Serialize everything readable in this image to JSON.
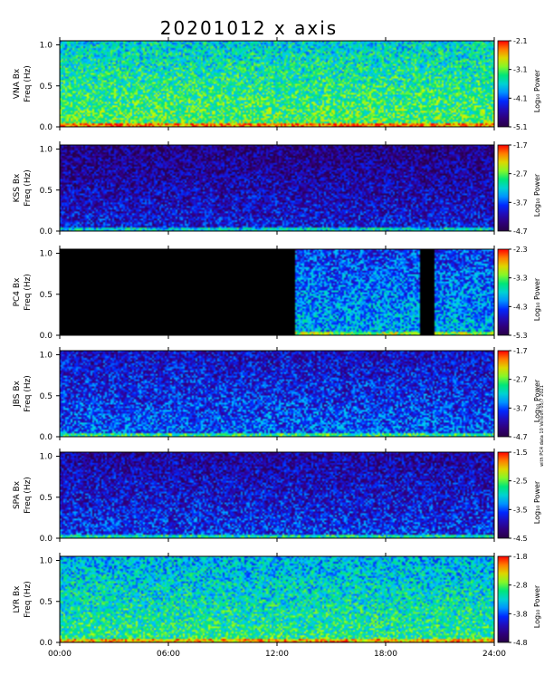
{
  "chart_data": {
    "type": "heatmap",
    "title": "20201012 x axis",
    "x_axis": {
      "range": [
        0,
        24
      ],
      "ticks": [
        0,
        6,
        12,
        18,
        24
      ],
      "tick_labels": [
        "00:00",
        "06:00",
        "12:00",
        "18:00",
        "24:00"
      ]
    },
    "y_axis": {
      "label": "Freq (Hz)",
      "range": [
        0,
        1.05
      ],
      "ticks": [
        0.0,
        0.5,
        1.0
      ],
      "tick_labels": [
        "0.0",
        "0.5",
        "1.0"
      ]
    },
    "colorbar_label": "Log₁₀ Power",
    "side_note": "with PC4 data 10 Version 05/7 2021",
    "panels": [
      {
        "station": "VNA Bx",
        "colorbar": [
          "-2.1",
          "-3.1",
          "-4.1",
          "-5.1"
        ],
        "base_level": 0.5
      },
      {
        "station": "KSS Bx",
        "colorbar": [
          "-1.7",
          "-2.7",
          "-3.7",
          "-4.7"
        ],
        "base_level": 0.1
      },
      {
        "station": "PC4 Bx",
        "colorbar": [
          "-2.3",
          "-3.3",
          "-4.3",
          "-5.3"
        ],
        "base_level": 0.3,
        "no_data_hours": [
          [
            0,
            13
          ],
          [
            19.8,
            20.7
          ]
        ]
      },
      {
        "station": "JBS Bx",
        "colorbar": [
          "-1.7",
          "-2.7",
          "-3.7",
          "-4.7"
        ],
        "base_level": 0.2
      },
      {
        "station": "SPA Bx",
        "colorbar": [
          "-1.5",
          "-2.5",
          "-3.5",
          "-4.5"
        ],
        "base_level": 0.15
      },
      {
        "station": "LYR Bx",
        "colorbar": [
          "-1.8",
          "-2.8",
          "-3.8",
          "-4.8"
        ],
        "base_level": 0.45
      }
    ]
  }
}
